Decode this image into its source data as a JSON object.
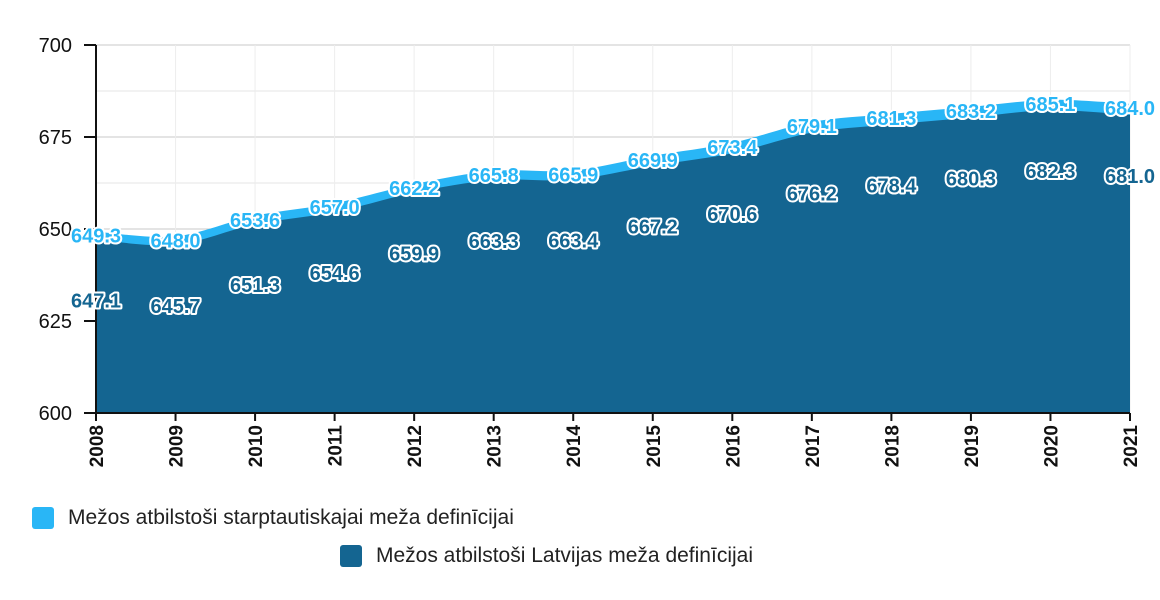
{
  "chart_data": {
    "type": "area",
    "categories": [
      "2008",
      "2009",
      "2010",
      "2011",
      "2012",
      "2013",
      "2014",
      "2015",
      "2016",
      "2017",
      "2018",
      "2019",
      "2020",
      "2021"
    ],
    "series": [
      {
        "name": "Mežos atbilstoši starptautiskajai meža definīcijai",
        "color": "#29b6f6",
        "values": [
          649.3,
          648.0,
          653.6,
          657.0,
          662.2,
          665.8,
          665.9,
          669.9,
          673.4,
          679.1,
          681.3,
          683.2,
          685.1,
          684.0
        ]
      },
      {
        "name": "Mežos atbilstoši Latvijas meža definīcijai",
        "color": "#146591",
        "values": [
          647.1,
          645.7,
          651.3,
          654.6,
          659.9,
          663.3,
          663.4,
          667.2,
          670.6,
          676.2,
          678.4,
          680.3,
          682.3,
          681.0
        ]
      }
    ],
    "y_ticks": [
      600,
      625,
      650,
      675,
      700
    ],
    "ylim": [
      600,
      700
    ],
    "grid": true,
    "legend_position": "bottom",
    "title": "",
    "xlabel": "",
    "ylabel": ""
  }
}
